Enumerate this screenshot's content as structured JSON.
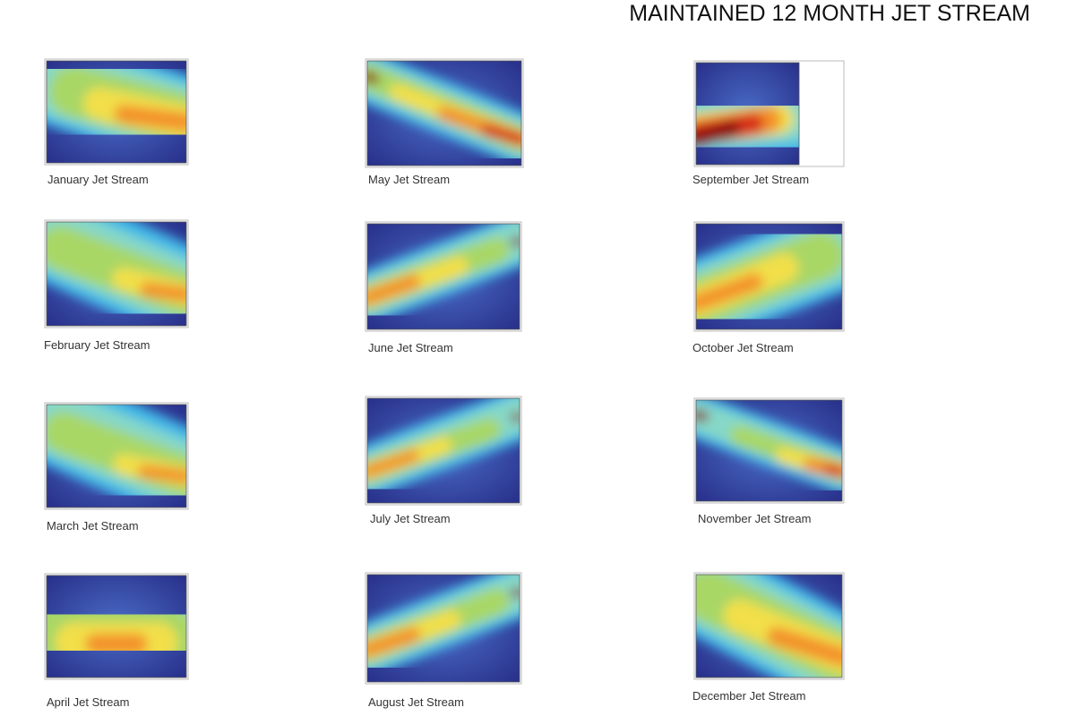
{
  "header": {
    "title": "MAINTAINED 12 MONTH JET STREAM"
  },
  "panels": [
    {
      "caption": "January Jet Stream"
    },
    {
      "caption": "February Jet Stream"
    },
    {
      "caption": "March Jet Stream"
    },
    {
      "caption": "April Jet Stream"
    },
    {
      "caption": "May Jet Stream"
    },
    {
      "caption": "June Jet Stream"
    },
    {
      "caption": "July Jet Stream"
    },
    {
      "caption": "August Jet Stream"
    },
    {
      "caption": "September Jet Stream"
    },
    {
      "caption": "October Jet Stream"
    },
    {
      "caption": "November Jet Stream"
    },
    {
      "caption": "December Jet Stream"
    }
  ]
}
